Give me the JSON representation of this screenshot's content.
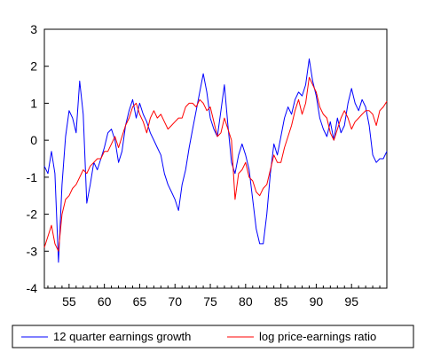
{
  "chart_data": {
    "type": "line",
    "title": "",
    "xlabel": "",
    "ylabel": "",
    "xlim": [
      1951.5,
      2000.0
    ],
    "ylim": [
      -4,
      3
    ],
    "yticks": [
      -4,
      -3,
      -2,
      -1,
      0,
      1,
      2,
      3
    ],
    "xticks": [
      1955,
      1960,
      1965,
      1970,
      1975,
      1980,
      1985,
      1990,
      1995
    ],
    "xticklabels": [
      "55",
      "60",
      "65",
      "70",
      "75",
      "80",
      "85",
      "90",
      "95"
    ],
    "grid": false,
    "legend_position": "bottom",
    "series": [
      {
        "name": "12 quarter earnings growth",
        "color": "#0000ff",
        "x": [
          1951.5,
          1952.0,
          1952.5,
          1953.0,
          1953.5,
          1954.0,
          1954.5,
          1955.0,
          1955.5,
          1956.0,
          1956.5,
          1957.0,
          1957.5,
          1958.0,
          1958.5,
          1959.0,
          1959.5,
          1960.0,
          1960.5,
          1961.0,
          1961.5,
          1962.0,
          1962.5,
          1963.0,
          1963.5,
          1964.0,
          1964.5,
          1965.0,
          1965.5,
          1966.0,
          1966.5,
          1967.0,
          1967.5,
          1968.0,
          1968.5,
          1969.0,
          1969.5,
          1970.0,
          1970.5,
          1971.0,
          1971.5,
          1972.0,
          1972.5,
          1973.0,
          1973.5,
          1974.0,
          1974.5,
          1975.0,
          1975.5,
          1976.0,
          1976.5,
          1977.0,
          1977.5,
          1978.0,
          1978.5,
          1979.0,
          1979.5,
          1980.0,
          1980.5,
          1981.0,
          1981.5,
          1982.0,
          1982.5,
          1983.0,
          1983.5,
          1984.0,
          1984.5,
          1985.0,
          1985.5,
          1986.0,
          1986.5,
          1987.0,
          1987.5,
          1988.0,
          1988.5,
          1989.0,
          1989.5,
          1990.0,
          1990.5,
          1991.0,
          1991.5,
          1992.0,
          1992.5,
          1993.0,
          1993.5,
          1994.0,
          1994.5,
          1995.0,
          1995.5,
          1996.0,
          1996.5,
          1997.0,
          1997.5,
          1998.0,
          1998.5,
          1999.0,
          1999.5,
          2000.0
        ],
        "y": [
          -0.7,
          -0.9,
          -0.3,
          -0.9,
          -3.3,
          -1.2,
          0.1,
          0.8,
          0.6,
          0.2,
          1.6,
          0.7,
          -1.7,
          -1.2,
          -0.6,
          -0.8,
          -0.5,
          -0.2,
          0.2,
          0.3,
          0.0,
          -0.6,
          -0.3,
          0.4,
          0.8,
          1.1,
          0.6,
          1.0,
          0.7,
          0.5,
          0.2,
          0.0,
          -0.2,
          -0.4,
          -0.9,
          -1.2,
          -1.4,
          -1.6,
          -1.9,
          -1.2,
          -0.8,
          -0.2,
          0.3,
          0.8,
          1.3,
          1.8,
          1.3,
          0.6,
          0.3,
          0.1,
          0.8,
          1.5,
          0.4,
          -0.6,
          -0.9,
          -0.4,
          -0.1,
          -0.4,
          -0.8,
          -1.6,
          -2.4,
          -2.8,
          -2.8,
          -2.0,
          -0.9,
          -0.1,
          -0.4,
          0.1,
          0.6,
          0.9,
          0.7,
          1.1,
          1.3,
          1.2,
          1.5,
          2.2,
          1.6,
          1.2,
          0.6,
          0.3,
          0.1,
          0.5,
          0.0,
          0.6,
          0.2,
          0.4,
          1.0,
          1.4,
          1.0,
          0.8,
          1.1,
          0.9,
          0.4,
          -0.4,
          -0.6,
          -0.5,
          -0.5,
          -0.3
        ]
      },
      {
        "name": "log price-earnings ratio",
        "color": "#ff0000",
        "x": [
          1951.5,
          1952.0,
          1952.5,
          1953.0,
          1953.5,
          1954.0,
          1954.5,
          1955.0,
          1955.5,
          1956.0,
          1956.5,
          1957.0,
          1957.5,
          1958.0,
          1958.5,
          1959.0,
          1959.5,
          1960.0,
          1960.5,
          1961.0,
          1961.5,
          1962.0,
          1962.5,
          1963.0,
          1963.5,
          1964.0,
          1964.5,
          1965.0,
          1965.5,
          1966.0,
          1966.5,
          1967.0,
          1967.5,
          1968.0,
          1968.5,
          1969.0,
          1969.5,
          1970.0,
          1970.5,
          1971.0,
          1971.5,
          1972.0,
          1972.5,
          1973.0,
          1973.5,
          1974.0,
          1974.5,
          1975.0,
          1975.5,
          1976.0,
          1976.5,
          1977.0,
          1977.5,
          1978.0,
          1978.5,
          1979.0,
          1979.5,
          1980.0,
          1980.5,
          1981.0,
          1981.5,
          1982.0,
          1982.5,
          1983.0,
          1983.5,
          1984.0,
          1984.5,
          1985.0,
          1985.5,
          1986.0,
          1986.5,
          1987.0,
          1987.5,
          1988.0,
          1988.5,
          1989.0,
          1989.5,
          1990.0,
          1990.5,
          1991.0,
          1991.5,
          1992.0,
          1992.5,
          1993.0,
          1993.5,
          1994.0,
          1994.5,
          1995.0,
          1995.5,
          1996.0,
          1996.5,
          1997.0,
          1997.5,
          1998.0,
          1998.5,
          1999.0,
          1999.5,
          2000.0
        ],
        "y": [
          -2.9,
          -2.6,
          -2.3,
          -2.8,
          -3.0,
          -2.0,
          -1.6,
          -1.5,
          -1.3,
          -1.2,
          -1.0,
          -0.8,
          -0.9,
          -0.7,
          -0.6,
          -0.5,
          -0.5,
          -0.3,
          -0.3,
          -0.1,
          0.1,
          -0.2,
          0.1,
          0.4,
          0.6,
          0.9,
          1.0,
          0.7,
          0.5,
          0.2,
          0.6,
          0.8,
          0.6,
          0.7,
          0.5,
          0.3,
          0.4,
          0.5,
          0.6,
          0.6,
          0.9,
          1.0,
          1.0,
          0.9,
          1.1,
          1.0,
          0.8,
          0.9,
          0.5,
          0.1,
          0.2,
          0.6,
          0.3,
          0.0,
          -1.6,
          -0.9,
          -0.8,
          -0.6,
          -1.0,
          -1.1,
          -1.4,
          -1.5,
          -1.3,
          -1.2,
          -0.8,
          -0.4,
          -0.6,
          -0.6,
          -0.2,
          0.1,
          0.4,
          0.8,
          1.1,
          0.7,
          1.0,
          1.7,
          1.5,
          1.3,
          0.9,
          0.7,
          0.6,
          0.2,
          0.0,
          0.3,
          0.6,
          0.8,
          0.6,
          0.3,
          0.5,
          0.6,
          0.7,
          0.8,
          0.8,
          0.7,
          0.4,
          0.8,
          0.9,
          1.05
        ]
      }
    ]
  }
}
